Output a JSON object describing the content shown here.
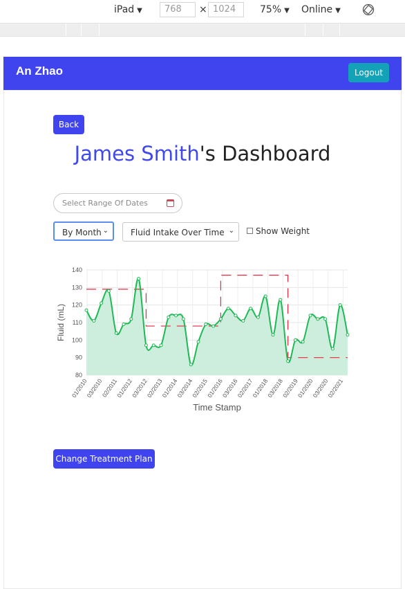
{
  "devtools": {
    "device": "iPad",
    "width": "768",
    "height": "1024",
    "times": "×",
    "zoom": "75%",
    "network": "Online"
  },
  "navbar": {
    "user_name": "An Zhao",
    "logout_label": "Logout"
  },
  "page": {
    "back_label": "Back",
    "patient_name": "James Smith",
    "title_suffix": "'s Dashboard",
    "date_range_placeholder": "Select Range Of Dates",
    "interval_select": "By Month",
    "metric_select": "Fluid Intake Over Time",
    "show_weight_label": "Show Weight",
    "show_weight_checked": false,
    "change_plan_label": "Change Treatment Plan"
  },
  "chart_data": {
    "type": "line",
    "xlabel": "Time Stamp",
    "ylabel": "Fluid (mL)",
    "ylim": [
      80,
      140
    ],
    "yticks": [
      80,
      90,
      100,
      110,
      120,
      130,
      140
    ],
    "xtick_labels": [
      "01/2010",
      "03/2010",
      "02/2011",
      "01/2012",
      "03/2012",
      "02/2013",
      "01/2014",
      "03/2014",
      "02/2015",
      "01/2016",
      "03/2016",
      "02/2017",
      "01/2018",
      "03/2018",
      "02/2019",
      "01/2020",
      "03/2020",
      "02/2021"
    ],
    "grid": true,
    "series": [
      {
        "color": "#1db954",
        "fill": "#cdeedd",
        "values": [
          117,
          111,
          121,
          128,
          104,
          109,
          112,
          135,
          97,
          97,
          97,
          113,
          114,
          112,
          86,
          99,
          109,
          108,
          112,
          118,
          114,
          111,
          118,
          113,
          125,
          103,
          123,
          88,
          100,
          99,
          114,
          112,
          112,
          95,
          120,
          103
        ]
      },
      {
        "style": "dashed-step",
        "color": "#e8283c",
        "values": [
          129,
          129,
          129,
          129,
          129,
          129,
          129,
          129,
          108,
          108,
          108,
          108,
          108,
          108,
          108,
          108,
          108,
          108,
          137,
          137,
          137,
          137,
          137,
          137,
          137,
          137,
          137,
          90,
          90,
          90,
          90,
          90,
          90,
          90,
          90,
          90
        ]
      }
    ]
  }
}
